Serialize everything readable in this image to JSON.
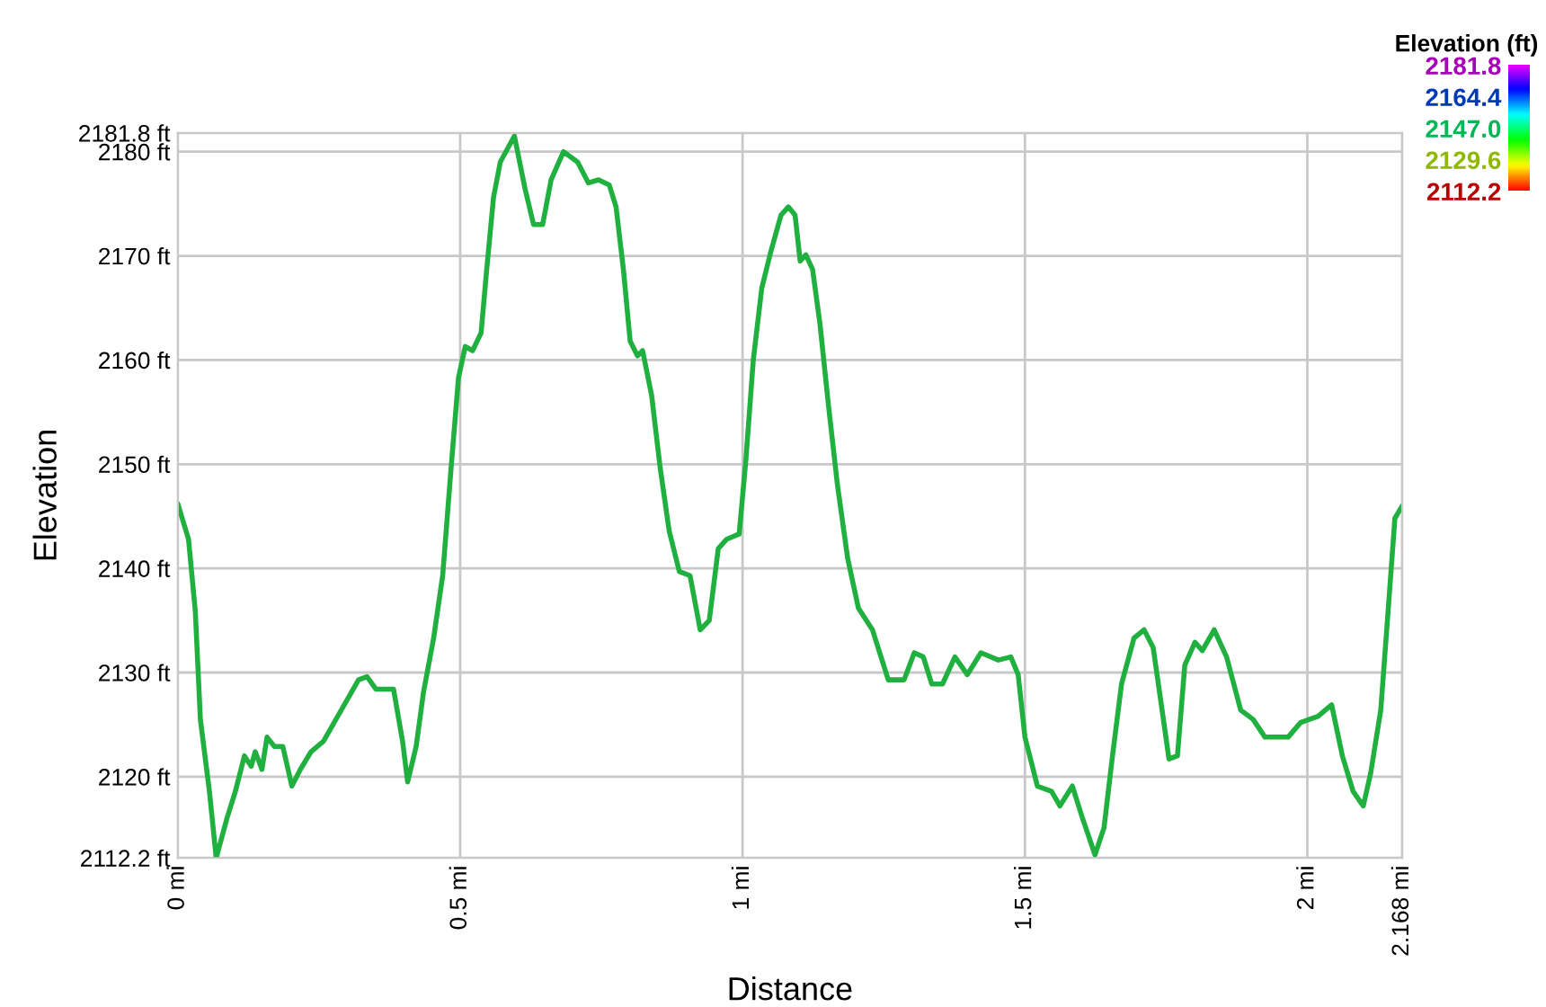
{
  "chart_data": {
    "type": "line",
    "xlabel": "Distance",
    "ylabel": "Elevation",
    "clabel": "Elevation (ft)",
    "x": [
      0,
      0.019,
      0.031,
      0.04,
      0.056,
      0.068,
      0.087,
      0.102,
      0.118,
      0.13,
      0.137,
      0.149,
      0.158,
      0.171,
      0.186,
      0.202,
      0.217,
      0.236,
      0.258,
      0.28,
      0.298,
      0.32,
      0.335,
      0.351,
      0.382,
      0.398,
      0.407,
      0.422,
      0.435,
      0.453,
      0.469,
      0.484,
      0.497,
      0.509,
      0.522,
      0.537,
      0.547,
      0.559,
      0.571,
      0.596,
      0.615,
      0.63,
      0.646,
      0.661,
      0.683,
      0.708,
      0.727,
      0.745,
      0.764,
      0.776,
      0.789,
      0.801,
      0.814,
      0.823,
      0.839,
      0.854,
      0.87,
      0.888,
      0.907,
      0.925,
      0.941,
      0.957,
      0.972,
      0.994,
      1.006,
      1.019,
      1.034,
      1.05,
      1.068,
      1.081,
      1.093,
      1.102,
      1.112,
      1.124,
      1.137,
      1.152,
      1.168,
      1.186,
      1.205,
      1.23,
      1.258,
      1.286,
      1.304,
      1.32,
      1.335,
      1.354,
      1.376,
      1.398,
      1.422,
      1.453,
      1.475,
      1.488,
      1.5,
      1.522,
      1.547,
      1.562,
      1.584,
      1.602,
      1.624,
      1.64,
      1.655,
      1.671,
      1.693,
      1.711,
      1.727,
      1.742,
      1.755,
      1.77,
      1.783,
      1.801,
      1.814,
      1.835,
      1.857,
      1.882,
      1.904,
      1.925,
      1.966,
      1.988,
      2.019,
      2.043,
      2.062,
      2.081,
      2.099,
      2.112,
      2.13,
      2.143,
      2.155,
      2.168
    ],
    "values": [
      2146.2,
      2142.8,
      2135.9,
      2125.5,
      2118.6,
      2112.2,
      2116,
      2118.6,
      2122,
      2121,
      2122.4,
      2120.7,
      2123.8,
      2122.9,
      2122.9,
      2119.1,
      2120.7,
      2122.4,
      2123.4,
      2125.5,
      2127.2,
      2129.3,
      2129.6,
      2128.4,
      2128.4,
      2123.4,
      2119.5,
      2122.9,
      2128.1,
      2133.3,
      2139.3,
      2149.7,
      2158.3,
      2161.3,
      2160.9,
      2162.6,
      2168.7,
      2175.6,
      2179,
      2181.5,
      2176.4,
      2173,
      2173,
      2177.3,
      2180,
      2179,
      2177,
      2177.3,
      2176.8,
      2174.7,
      2168.7,
      2161.8,
      2160.4,
      2160.9,
      2156.6,
      2149.7,
      2143.6,
      2139.7,
      2139.3,
      2134.1,
      2135,
      2141.9,
      2142.8,
      2143.3,
      2150.5,
      2160,
      2166.9,
      2170.4,
      2173.9,
      2174.7,
      2173.9,
      2169.5,
      2170.1,
      2168.7,
      2163.5,
      2155.7,
      2148,
      2141,
      2136.2,
      2134.1,
      2129.3,
      2129.3,
      2131.9,
      2131.5,
      2128.9,
      2128.9,
      2131.5,
      2129.8,
      2131.9,
      2131.2,
      2131.5,
      2129.8,
      2123.8,
      2119.1,
      2118.6,
      2117.2,
      2119.1,
      2116,
      2112.5,
      2115.1,
      2122,
      2128.9,
      2133.3,
      2134.1,
      2132.4,
      2126.7,
      2121.7,
      2122,
      2130.7,
      2132.9,
      2132.1,
      2134.1,
      2131.5,
      2126.4,
      2125.5,
      2123.8,
      2123.8,
      2125.2,
      2125.8,
      2126.9,
      2122,
      2118.6,
      2117.2,
      2120.3,
      2126.4,
      2135.9,
      2144.8,
      2146
    ],
    "xlim": [
      0,
      2.168
    ],
    "xticks": [
      {
        "value": 0,
        "label": "0 mi"
      },
      {
        "value": 0.5,
        "label": "0.5 mi"
      },
      {
        "value": 1,
        "label": "1 mi"
      },
      {
        "value": 1.5,
        "label": "1.5 mi"
      },
      {
        "value": 2,
        "label": "2 mi"
      },
      {
        "value": 2.168,
        "label": "2.168 mi"
      }
    ],
    "ylim": [
      2112.2,
      2181.8
    ],
    "yticks": [
      {
        "value": 2112.2,
        "label": "2112.2 ft"
      },
      {
        "value": 2120,
        "label": "2120 ft"
      },
      {
        "value": 2130,
        "label": "2130 ft"
      },
      {
        "value": 2140,
        "label": "2140 ft"
      },
      {
        "value": 2150,
        "label": "2150 ft"
      },
      {
        "value": 2160,
        "label": "2160 ft"
      },
      {
        "value": 2170,
        "label": "2170 ft"
      },
      {
        "value": 2180,
        "label": "2180 ft"
      },
      {
        "value": 2181.8,
        "label": "2181.8 ft"
      }
    ],
    "clim": [
      2112.2,
      2181.8
    ],
    "cticks": [
      {
        "value": 2181.8,
        "label": "2181.8"
      },
      {
        "value": 2164.4,
        "label": "2164.4"
      },
      {
        "value": 2147,
        "label": "2147.0"
      },
      {
        "value": 2129.6,
        "label": "2129.6"
      },
      {
        "value": 2112.2,
        "label": "2112.2"
      }
    ],
    "color": "#20b040",
    "grid": true,
    "marker": "none",
    "line_style": "solid"
  }
}
